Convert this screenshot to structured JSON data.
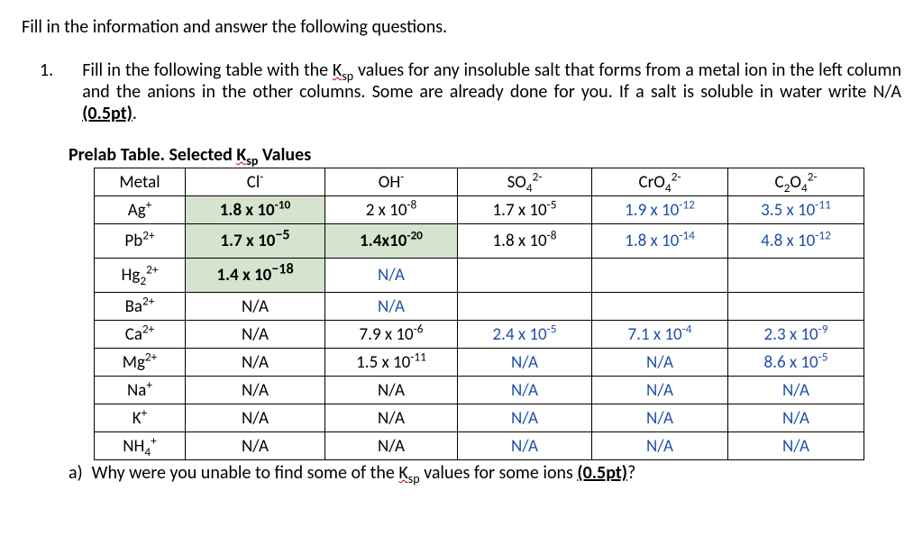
{
  "intro": "Fill in the information and answer the following questions.",
  "q": {
    "num": "1.",
    "text_parts": {
      "p1": "Fill in the following table with the ",
      "ksp": "K",
      "ksp_sub": "sp",
      "p2": " values for any insoluble salt that forms from a metal ion in the left column and the anions in the other columns. Some are already done for you. If a salt is soluble in water write N/A ",
      "pts": "(0.5pt)",
      "p3": "."
    }
  },
  "table_title_parts": {
    "pre": "Prelab Table.  Selected ",
    "ksp": "K",
    "ksp_sub": "sp",
    "post": " Values"
  },
  "headers": {
    "metal": "Metal",
    "cl": "Cl",
    "oh": "OH",
    "so4": "SO",
    "cro4": "CrO",
    "c2o4": "C"
  },
  "rows": {
    "ag": {
      "ion": "Ag",
      "charge": "+",
      "cl": "1.8 x 10",
      "cl_e": "-10",
      "oh": "2 x 10",
      "oh_e": "-8",
      "so4": "1.7 x 10",
      "so4_e": "-5",
      "cro4": "1.9 x 10",
      "cro4_e": "-12",
      "c2o4": "3.5 x 10",
      "c2o4_e": "-11"
    },
    "pb": {
      "ion": "Pb",
      "charge": "2+",
      "cl": "1.7 x 10",
      "cl_e": "−5",
      "oh": "1.4x10",
      "oh_e": "-20",
      "so4": "1.8 x 10",
      "so4_e": "-8",
      "cro4": "1.8 x 10",
      "cro4_e": "-14",
      "c2o4": "4.8 x 10",
      "c2o4_e": "-12"
    },
    "hg": {
      "ion": "Hg",
      "sub": "2",
      "charge": "2+",
      "cl": "1.4 x 10",
      "cl_e": "−18",
      "oh": "N/A"
    },
    "ba": {
      "ion": "Ba",
      "charge": "2+",
      "cl": "N/A",
      "oh": "N/A"
    },
    "ca": {
      "ion": "Ca",
      "charge": "2+",
      "cl": "N/A",
      "oh": "7.9 x 10",
      "oh_e": "-6",
      "so4": "2.4 x 10",
      "so4_e": "-5",
      "cro4": "7.1 x 10",
      "cro4_e": "-4",
      "c2o4": "2.3 x 10",
      "c2o4_e": "-9"
    },
    "mg": {
      "ion": "Mg",
      "charge": "2+",
      "cl": "N/A",
      "oh": "1.5 x 10",
      "oh_e": "-11",
      "so4": "N/A",
      "cro4": "N/A",
      "c2o4": "8.6 x 10",
      "c2o4_e": "-5"
    },
    "na": {
      "ion": "Na",
      "charge": "+",
      "cl": "N/A",
      "oh": "N/A",
      "so4": "N/A",
      "cro4": "N/A",
      "c2o4": "N/A"
    },
    "k": {
      "ion": "K",
      "charge": "+",
      "cl": "N/A",
      "oh": "N/A",
      "so4": "N/A",
      "cro4": "N/A",
      "c2o4": "N/A"
    },
    "nh4": {
      "ion": "NH",
      "sub": "4",
      "charge": "+",
      "cl": "N/A",
      "oh": "N/A",
      "so4": "N/A",
      "cro4": "N/A",
      "c2o4": "N/A"
    }
  },
  "sub_a": {
    "marker": "a)",
    "text_parts": {
      "p1": "Why were you unable to find some of the ",
      "ksp": "K",
      "ksp_sub": "sp",
      "p2": " values for some ions ",
      "pts": "(0.5pt)",
      "p3": "?"
    }
  },
  "style": {
    "shade_bg": "#d5e3cf",
    "blue_text": "#1f4ea8",
    "font_size_body": 20,
    "table_font_size": 19
  }
}
